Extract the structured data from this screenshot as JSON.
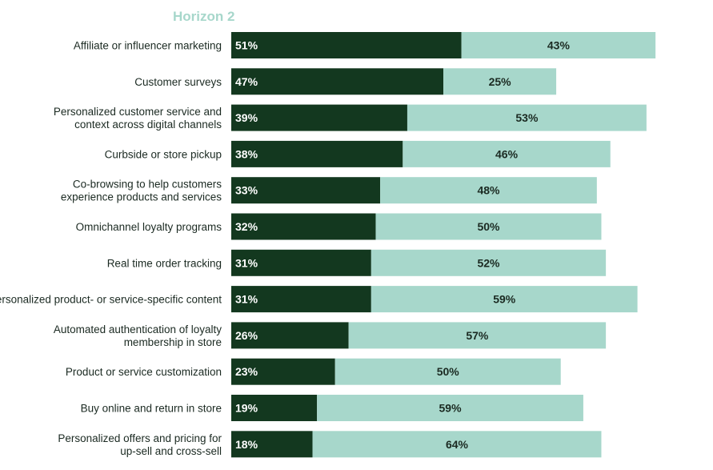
{
  "chart_data": {
    "type": "bar",
    "orientation": "horizontal",
    "stacked": true,
    "legend": {
      "label": "Horizon 2",
      "placement": "top-left"
    },
    "categories": [
      [
        "Affiliate or influencer marketing"
      ],
      [
        "Customer surveys"
      ],
      [
        "Personalized customer service and",
        "context across digital channels"
      ],
      [
        "Curbside or store pickup"
      ],
      [
        "Co-browsing to help customers",
        "experience products and services"
      ],
      [
        "Omnichannel loyalty programs"
      ],
      [
        "Real time order tracking"
      ],
      [
        "Personalized product- or service-specific content"
      ],
      [
        "Automated authentication of loyalty",
        "membership in store"
      ],
      [
        "Product or service customization"
      ],
      [
        "Buy online and return in store"
      ],
      [
        "Personalized offers and pricing for",
        "up-sell and cross-sell"
      ]
    ],
    "series": [
      {
        "color": "#13381f",
        "label_color": "#ffffff",
        "values": [
          51,
          47,
          39,
          38,
          33,
          32,
          31,
          31,
          26,
          23,
          19,
          18
        ]
      },
      {
        "name": "Horizon 2",
        "color": "#a7d7cb",
        "label_color": "#1b2a22",
        "values": [
          43,
          25,
          53,
          46,
          48,
          50,
          52,
          59,
          57,
          50,
          59,
          64
        ]
      }
    ],
    "value_suffix": "%",
    "xlim": [
      0,
      100
    ],
    "grid": false
  }
}
